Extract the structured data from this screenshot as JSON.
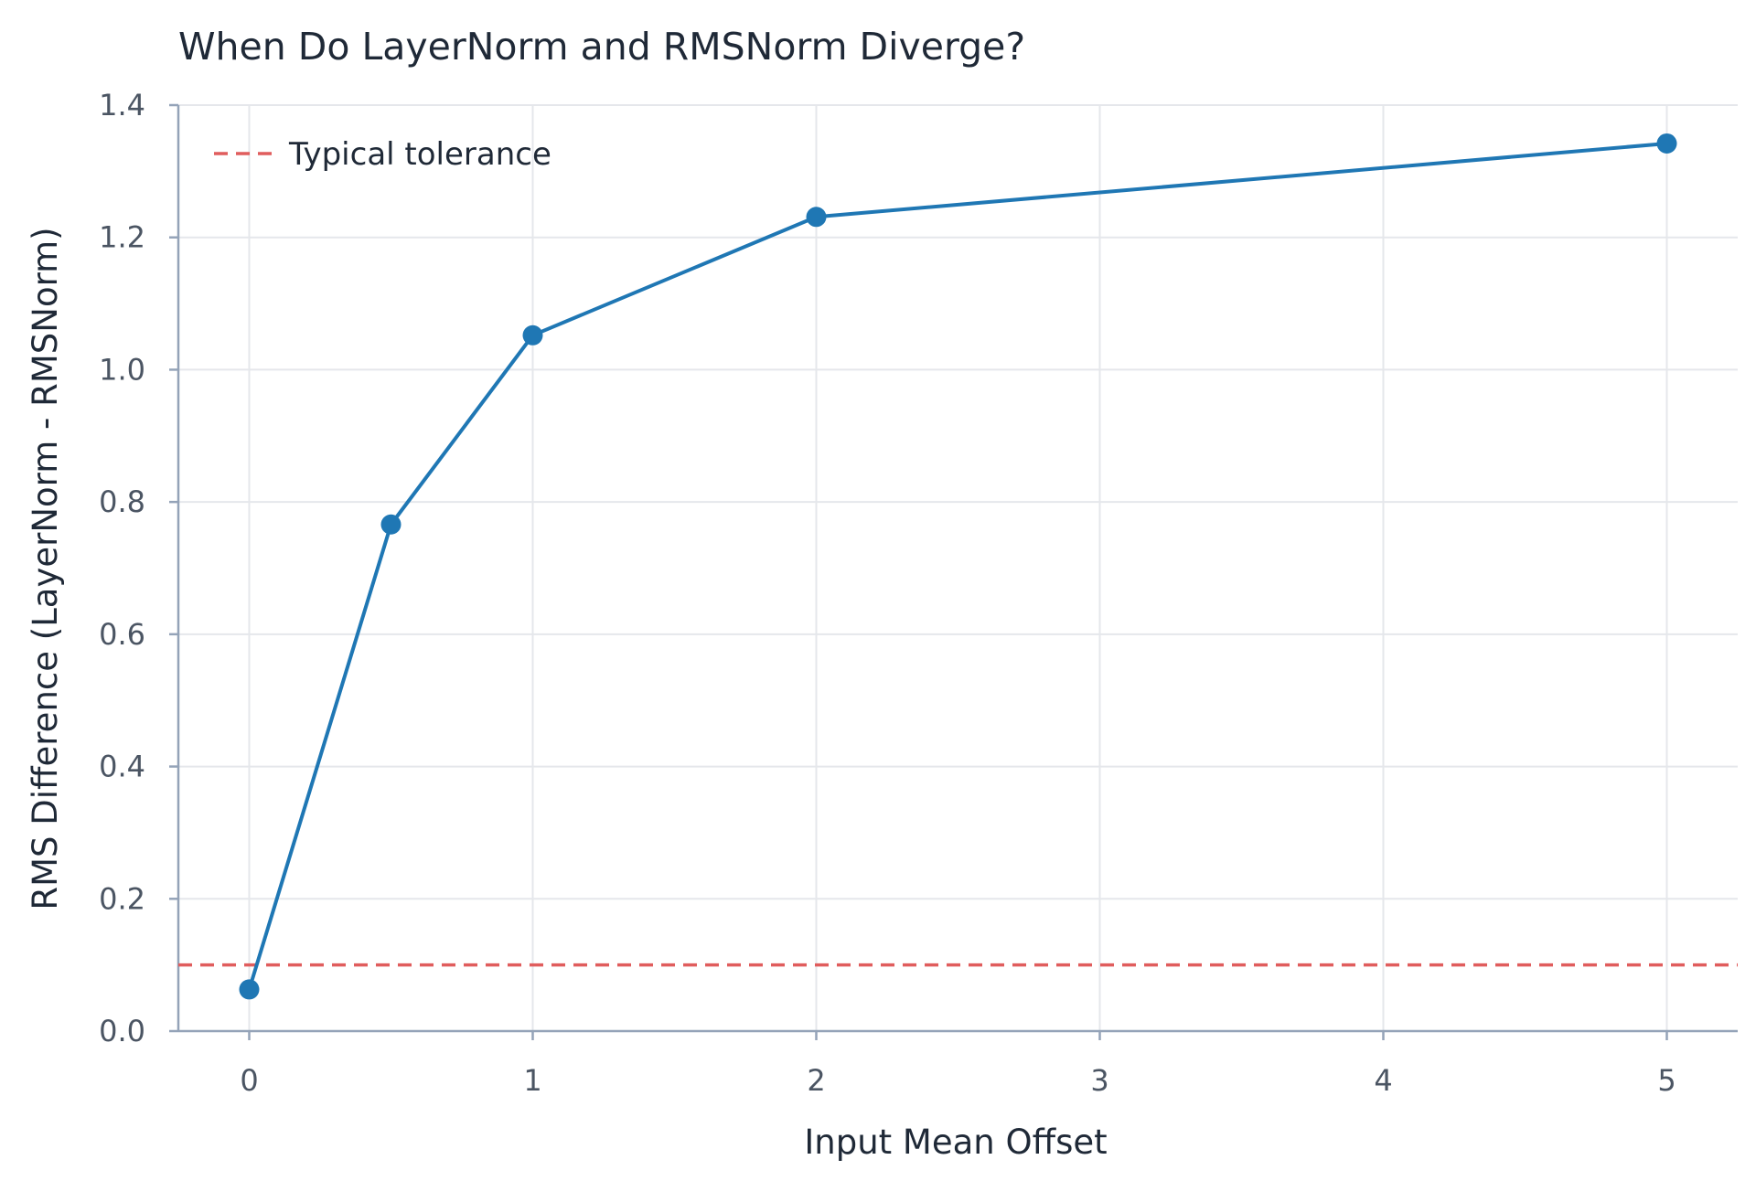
{
  "chart_data": {
    "type": "line",
    "title": "When Do LayerNorm and RMSNorm Diverge?",
    "xlabel": "Input Mean Offset",
    "ylabel": "RMS Difference (LayerNorm - RMSNorm)",
    "xlim": [
      -0.25,
      5.25
    ],
    "ylim": [
      0,
      1.4
    ],
    "x_ticks": [
      "0",
      "1",
      "2",
      "3",
      "4",
      "5"
    ],
    "y_ticks": [
      "0.0",
      "0.2",
      "0.4",
      "0.6",
      "0.8",
      "1.0",
      "1.2",
      "1.4"
    ],
    "grid": true,
    "legend_position": "top-left",
    "series": [
      {
        "x": [
          0,
          0.5,
          1,
          2,
          5
        ],
        "y": [
          0.063,
          0.766,
          1.052,
          1.231,
          1.342
        ],
        "color": "#1f77b4",
        "marker": "circle"
      }
    ],
    "reference_lines": [
      {
        "name": "Typical tolerance",
        "y": 0.1,
        "color": "#e05d5d",
        "style": "dashed"
      }
    ]
  }
}
